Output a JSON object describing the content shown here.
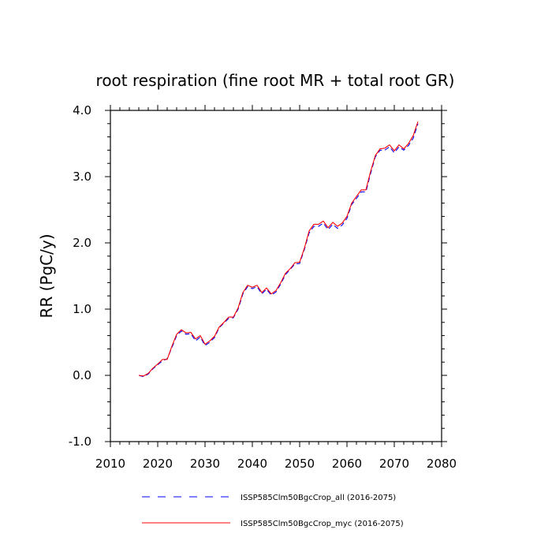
{
  "chart_data": {
    "type": "line",
    "title": "root respiration (fine root MR + total root GR)",
    "xlabel": "",
    "ylabel": "RR  (PgC/y)",
    "xlim": [
      2010,
      2080
    ],
    "ylim": [
      -1.0,
      4.0
    ],
    "xticks": [
      2010,
      2020,
      2030,
      2040,
      2050,
      2060,
      2070,
      2080
    ],
    "xtick_labels": [
      "2010",
      "2020",
      "2030",
      "2040",
      "2050",
      "2060",
      "2070",
      "2080"
    ],
    "yticks": [
      -1.0,
      0.0,
      1.0,
      2.0,
      3.0,
      4.0
    ],
    "ytick_labels": [
      "-1.0",
      "0.0",
      "1.0",
      "2.0",
      "3.0",
      "4.0"
    ],
    "grid": false,
    "legend_position": "bottom",
    "x": [
      2016,
      2017,
      2018,
      2019,
      2020,
      2021,
      2022,
      2023,
      2024,
      2025,
      2026,
      2027,
      2028,
      2029,
      2030,
      2031,
      2032,
      2033,
      2034,
      2035,
      2036,
      2037,
      2038,
      2039,
      2040,
      2041,
      2042,
      2043,
      2044,
      2045,
      2046,
      2047,
      2048,
      2049,
      2050,
      2051,
      2052,
      2053,
      2054,
      2055,
      2056,
      2057,
      2058,
      2059,
      2060,
      2061,
      2062,
      2063,
      2064,
      2065,
      2066,
      2067,
      2068,
      2069,
      2070,
      2071,
      2072,
      2073,
      2074,
      2075
    ],
    "series": [
      {
        "name": "ISSP585Clm50BgcCrop_all (2016-2075)",
        "color": "#0000ff",
        "dash": "dashed",
        "values": [
          0.0,
          -0.02,
          0.02,
          0.1,
          0.16,
          0.22,
          0.25,
          0.42,
          0.6,
          0.67,
          0.62,
          0.63,
          0.52,
          0.58,
          0.45,
          0.5,
          0.57,
          0.72,
          0.79,
          0.86,
          0.87,
          1.0,
          1.23,
          1.34,
          1.31,
          1.34,
          1.23,
          1.3,
          1.21,
          1.26,
          1.38,
          1.52,
          1.6,
          1.68,
          1.69,
          1.9,
          2.15,
          2.25,
          2.25,
          2.3,
          2.2,
          2.28,
          2.22,
          2.27,
          2.37,
          2.58,
          2.67,
          2.77,
          2.77,
          3.05,
          3.3,
          3.4,
          3.4,
          3.45,
          3.36,
          3.45,
          3.4,
          3.47,
          3.58,
          3.8
        ]
      },
      {
        "name": "ISSP585Clm50BgcCrop_myc (2016-2075)",
        "color": "#ff0000",
        "dash": "solid",
        "values": [
          0.0,
          -0.01,
          0.03,
          0.11,
          0.17,
          0.24,
          0.24,
          0.44,
          0.62,
          0.69,
          0.64,
          0.65,
          0.55,
          0.6,
          0.47,
          0.52,
          0.59,
          0.73,
          0.8,
          0.88,
          0.88,
          1.02,
          1.25,
          1.36,
          1.33,
          1.36,
          1.25,
          1.32,
          1.23,
          1.28,
          1.4,
          1.54,
          1.61,
          1.7,
          1.71,
          1.92,
          2.18,
          2.28,
          2.28,
          2.33,
          2.23,
          2.31,
          2.25,
          2.3,
          2.4,
          2.6,
          2.7,
          2.8,
          2.8,
          3.08,
          3.32,
          3.42,
          3.43,
          3.48,
          3.39,
          3.48,
          3.42,
          3.5,
          3.62,
          3.83
        ]
      }
    ]
  }
}
